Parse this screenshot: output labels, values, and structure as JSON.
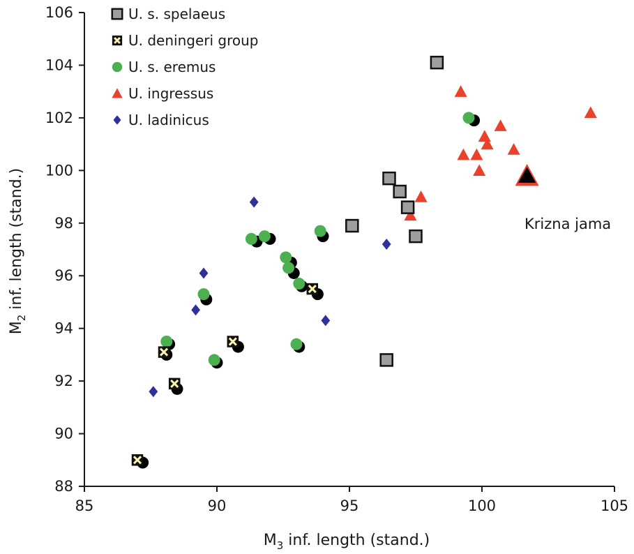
{
  "chart_data": {
    "type": "scatter",
    "x_axis": {
      "label_main": "M",
      "label_sub": "3",
      "label_rest": " inf. length (stand.)",
      "range": [
        85,
        105
      ],
      "ticks": [
        85,
        90,
        95,
        100,
        105
      ]
    },
    "y_axis": {
      "label_main": "M",
      "label_sub": "2",
      "label_rest": " inf. length (stand.)",
      "range": [
        88,
        106
      ],
      "ticks": [
        88,
        90,
        92,
        94,
        96,
        98,
        100,
        102,
        104,
        106
      ]
    },
    "grid": false,
    "legend_position": "top-left",
    "annotations": [
      {
        "text": "Krizna jama",
        "x": 101.6,
        "y": 99.8
      }
    ],
    "series": [
      {
        "name": "U. s. spelaeus",
        "marker": "square",
        "color": "#9e9e9e",
        "points": [
          [
            98.3,
            104.1
          ],
          [
            96.5,
            99.7
          ],
          [
            96.9,
            99.2
          ],
          [
            97.2,
            98.6
          ],
          [
            97.5,
            97.5
          ],
          [
            95.1,
            97.9
          ],
          [
            96.4,
            92.8
          ]
        ]
      },
      {
        "name": "U. deningeri group",
        "marker": "crossed-square",
        "color": "#fff5b0",
        "points": [
          [
            87.0,
            89.0
          ],
          [
            88.0,
            93.1
          ],
          [
            88.4,
            91.9
          ],
          [
            90.6,
            93.5
          ],
          [
            93.6,
            95.5
          ]
        ]
      },
      {
        "name": "U. s. eremus",
        "marker": "circle",
        "color": "#4caf50",
        "points": [
          [
            88.1,
            93.5
          ],
          [
            89.5,
            95.3
          ],
          [
            89.9,
            92.8
          ],
          [
            91.3,
            97.4
          ],
          [
            91.8,
            97.5
          ],
          [
            92.6,
            96.7
          ],
          [
            92.7,
            96.3
          ],
          [
            93.1,
            95.7
          ],
          [
            93.0,
            93.4
          ],
          [
            93.9,
            97.7
          ],
          [
            99.5,
            102.0
          ]
        ]
      },
      {
        "name": "U. ingressus",
        "marker": "triangle",
        "color": "#e8412c",
        "points": [
          [
            99.2,
            103.0
          ],
          [
            100.1,
            101.3
          ],
          [
            100.7,
            101.7
          ],
          [
            104.1,
            102.2
          ],
          [
            100.2,
            101.0
          ],
          [
            101.2,
            100.8
          ],
          [
            99.3,
            100.6
          ],
          [
            99.8,
            100.6
          ],
          [
            99.9,
            100.0
          ],
          [
            97.7,
            99.0
          ],
          [
            97.3,
            98.3
          ]
        ]
      },
      {
        "name": "U. ladinicus",
        "marker": "diamond",
        "color": "#30309a",
        "points": [
          [
            91.4,
            98.8
          ],
          [
            89.5,
            96.1
          ],
          [
            89.2,
            94.7
          ],
          [
            87.6,
            91.6
          ],
          [
            94.1,
            94.3
          ],
          [
            96.4,
            97.2
          ]
        ]
      }
    ],
    "highlight_point": {
      "marker": "triangle-large",
      "color": "#000000",
      "x": 101.7,
      "y": 99.8
    },
    "shadow_points": [
      [
        87.2,
        88.9
      ],
      [
        88.1,
        93.0
      ],
      [
        88.2,
        93.4
      ],
      [
        88.5,
        91.7
      ],
      [
        89.6,
        95.1
      ],
      [
        90.0,
        92.7
      ],
      [
        90.8,
        93.3
      ],
      [
        91.5,
        97.3
      ],
      [
        92.0,
        97.4
      ],
      [
        92.8,
        96.5
      ],
      [
        92.9,
        96.1
      ],
      [
        93.2,
        95.6
      ],
      [
        93.1,
        93.3
      ],
      [
        93.8,
        95.3
      ],
      [
        94.0,
        97.5
      ],
      [
        99.7,
        101.9
      ]
    ]
  }
}
